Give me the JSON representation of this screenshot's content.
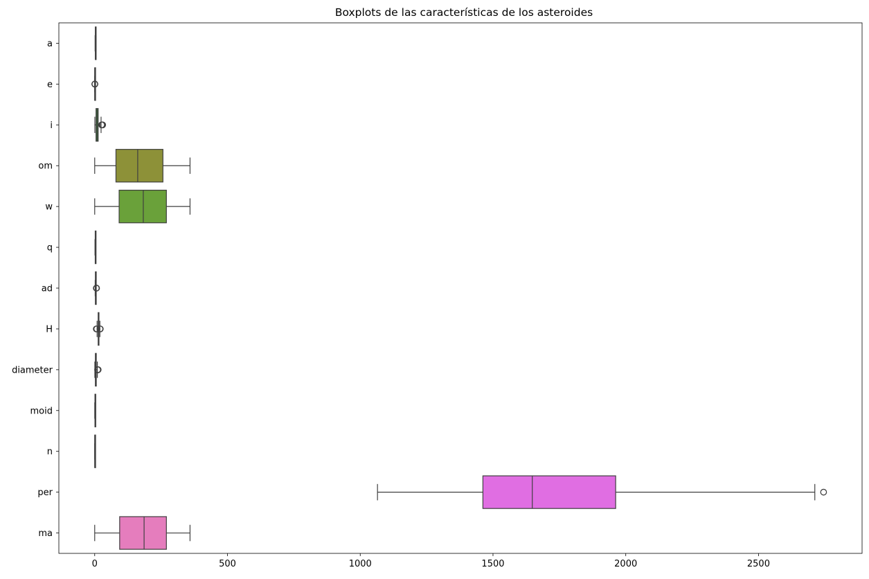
{
  "chart_data": {
    "type": "boxplot",
    "orientation": "horizontal",
    "title": "Boxplots de las características de los asteroides",
    "xlabel": "",
    "ylabel": "",
    "xlim": [
      -135,
      2890
    ],
    "xticks": [
      0,
      500,
      1000,
      1500,
      2000,
      2500
    ],
    "grid": false,
    "legend": "none",
    "categories": [
      "a",
      "e",
      "i",
      "om",
      "w",
      "q",
      "ad",
      "H",
      "diameter",
      "moid",
      "n",
      "per",
      "ma"
    ],
    "series": [
      {
        "label": "a",
        "color": "#3274a1",
        "whisker_low": 1.5,
        "q1": 2.3,
        "median": 2.6,
        "q3": 2.9,
        "whisker_high": 4.5,
        "outliers": []
      },
      {
        "label": "e",
        "color": "#e1812c",
        "whisker_low": 0.0,
        "q1": 0.1,
        "median": 0.15,
        "q3": 0.2,
        "whisker_high": 0.4,
        "outliers": [
          0.5,
          0.6,
          0.7
        ]
      },
      {
        "label": "i",
        "color": "#3a923a",
        "whisker_low": 0.5,
        "q1": 5,
        "median": 9,
        "q3": 13,
        "whisker_high": 24,
        "outliers": [
          26,
          28,
          30
        ]
      },
      {
        "label": "om",
        "color": "#8d9138",
        "whisker_low": 0,
        "q1": 80,
        "median": 162,
        "q3": 257,
        "whisker_high": 359,
        "outliers": []
      },
      {
        "label": "w",
        "color": "#6aa13a",
        "whisker_low": 0,
        "q1": 92,
        "median": 183,
        "q3": 270,
        "whisker_high": 359,
        "outliers": []
      },
      {
        "label": "q",
        "color": "#3ba06e",
        "whisker_low": 1.1,
        "q1": 1.9,
        "median": 2.2,
        "q3": 2.5,
        "whisker_high": 3.5,
        "outliers": []
      },
      {
        "label": "ad",
        "color": "#3d9da4",
        "whisker_low": 1.8,
        "q1": 2.7,
        "median": 3.0,
        "q3": 3.3,
        "whisker_high": 5.5,
        "outliers": [
          6,
          7
        ]
      },
      {
        "label": "H",
        "color": "#4191c4",
        "whisker_low": 9,
        "q1": 13,
        "median": 14.5,
        "q3": 15.8,
        "whisker_high": 19.5,
        "outliers": [
          6,
          8,
          20,
          21
        ]
      },
      {
        "label": "diameter",
        "color": "#8a79c2",
        "whisker_low": 0.5,
        "q1": 2.5,
        "median": 4,
        "q3": 6,
        "whisker_high": 10,
        "outliers": [
          11,
          12,
          13
        ]
      },
      {
        "label": "moid",
        "color": "#bb6fc1",
        "whisker_low": 0.1,
        "q1": 0.9,
        "median": 1.2,
        "q3": 1.5,
        "whisker_high": 2.6,
        "outliers": []
      },
      {
        "label": "n",
        "color": "#d45fc4",
        "whisker_low": 0.1,
        "q1": 0.19,
        "median": 0.22,
        "q3": 0.25,
        "whisker_high": 0.35,
        "outliers": []
      },
      {
        "label": "per",
        "color": "#e06ee2",
        "whisker_low": 1065,
        "q1": 1462,
        "median": 1648,
        "q3": 1962,
        "whisker_high": 2712,
        "outliers": [
          2745
        ]
      },
      {
        "label": "ma",
        "color": "#e57dbd",
        "whisker_low": 0,
        "q1": 94,
        "median": 186,
        "q3": 270,
        "whisker_high": 359,
        "outliers": []
      }
    ]
  }
}
